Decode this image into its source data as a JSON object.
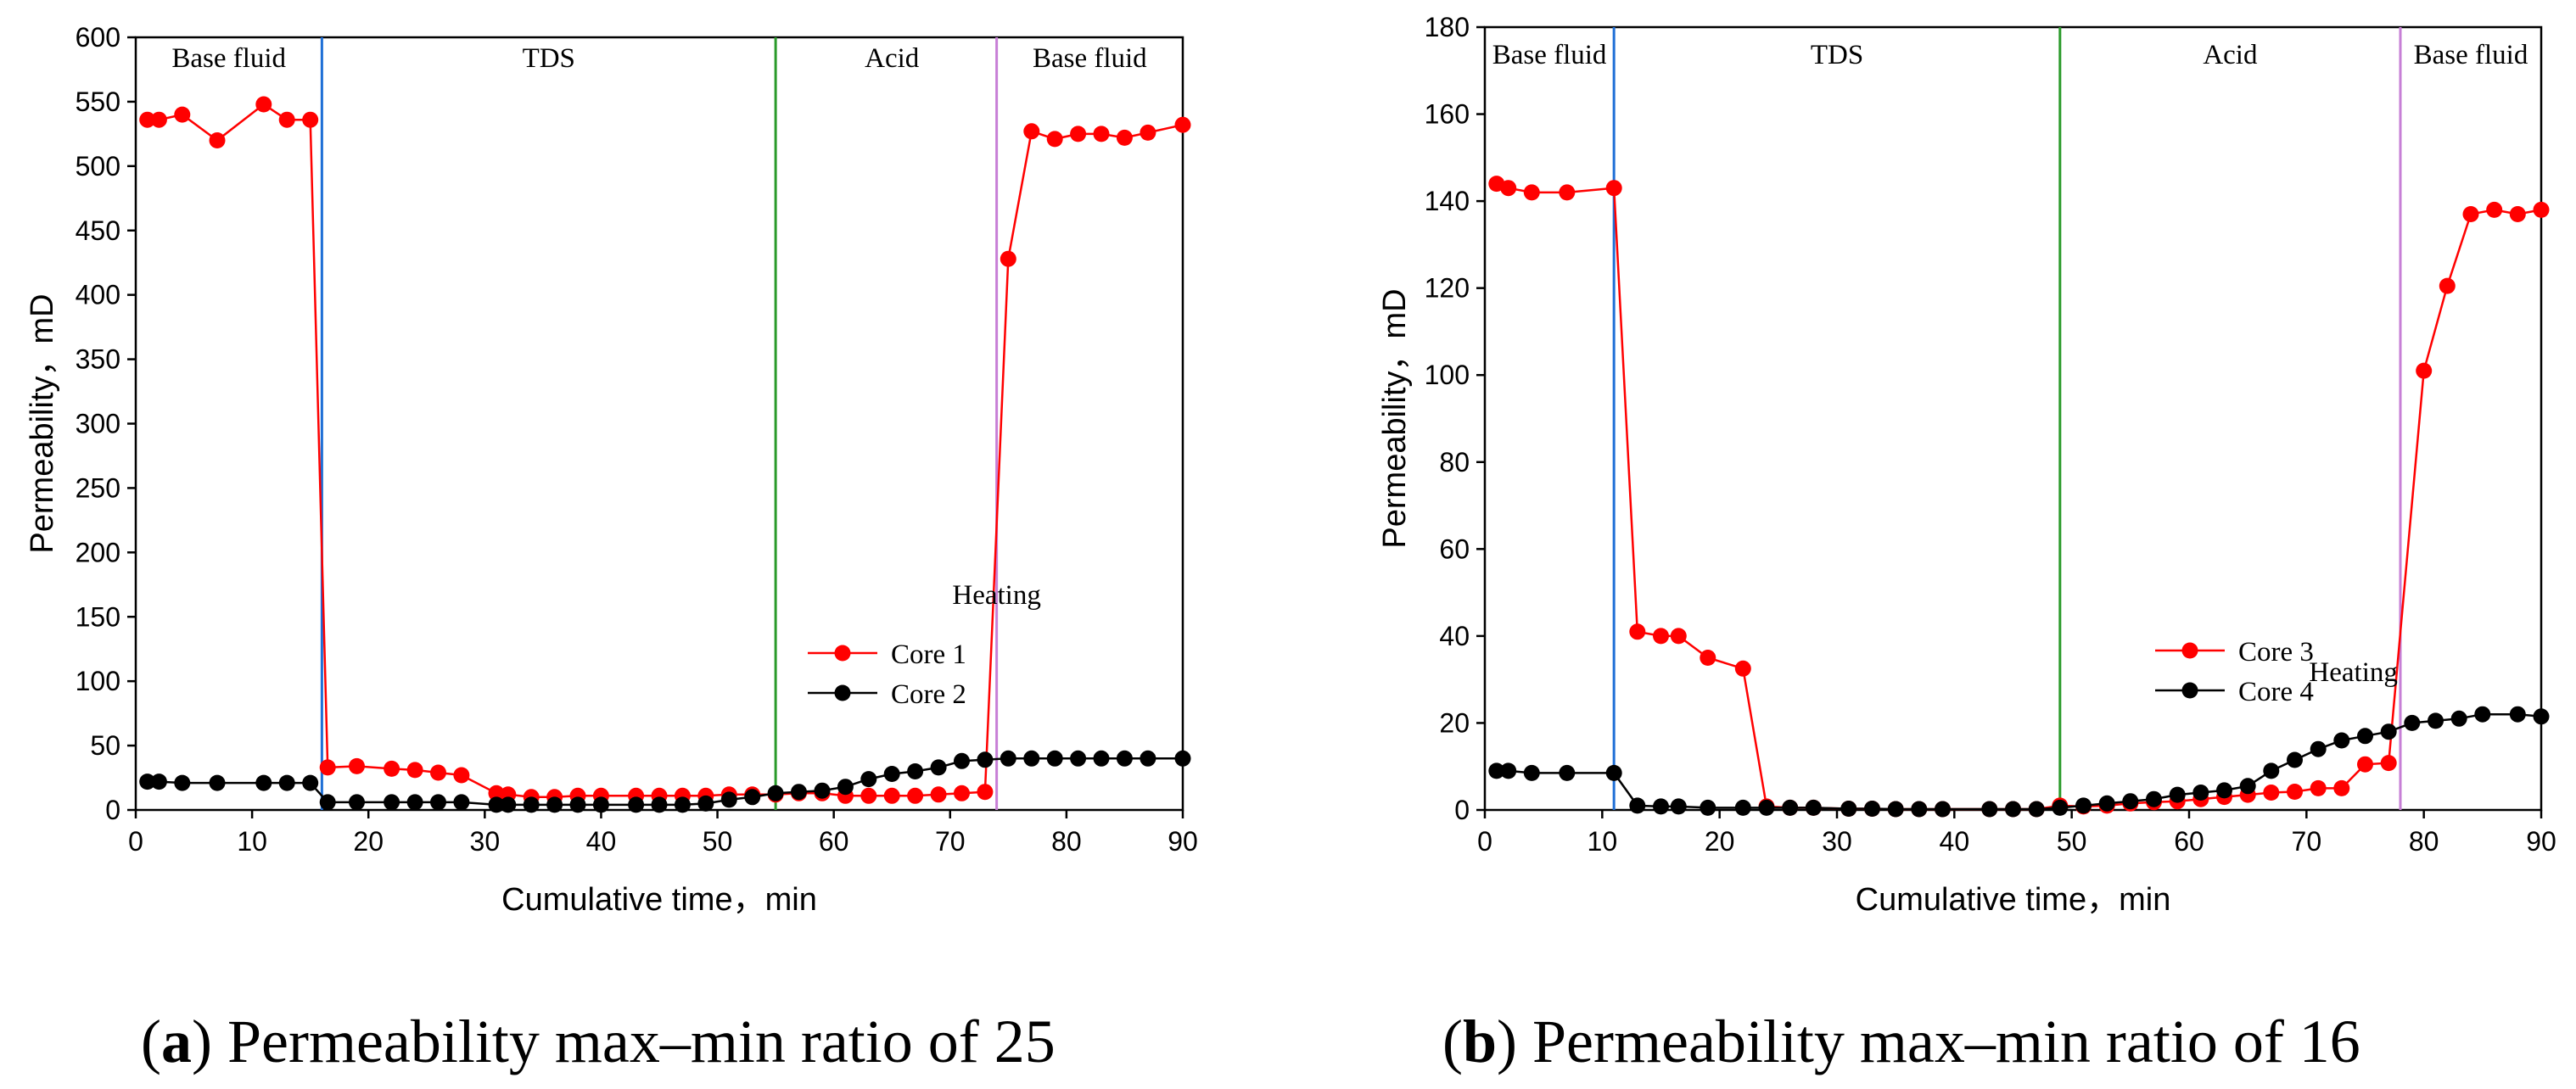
{
  "chart_data": [
    {
      "type": "line",
      "caption_letter": "a",
      "caption_text": ") Permeability max–min ratio of 25",
      "caption_open": "(",
      "xlabel": "Cumulative time，min",
      "ylabel": "Permeability，mD",
      "xlim": [
        0,
        90
      ],
      "ylim": [
        0,
        600
      ],
      "xticks": [
        0,
        10,
        20,
        30,
        40,
        50,
        60,
        70,
        80,
        90
      ],
      "yticks": [
        0,
        50,
        100,
        150,
        200,
        250,
        300,
        350,
        400,
        450,
        500,
        550,
        600
      ],
      "stage_lines": [
        {
          "x": 16,
          "color": "#1f6fd6"
        },
        {
          "x": 55,
          "color": "#2a9a2a"
        },
        {
          "x": 74,
          "color": "#c77fd6"
        }
      ],
      "regions": [
        {
          "label": "Base fluid",
          "x": 8,
          "y": 585
        },
        {
          "label": "TDS",
          "x": 35.5,
          "y": 585
        },
        {
          "label": "Acid",
          "x": 65,
          "y": 585
        },
        {
          "label": "Base fluid",
          "x": 82,
          "y": 585
        }
      ],
      "annotation": {
        "text": "Heating",
        "x": 74,
        "y": 168
      },
      "series": [
        {
          "name": "Core 1",
          "color": "#ff0000",
          "points": [
            [
              1,
              536
            ],
            [
              2,
              536
            ],
            [
              4,
              540
            ],
            [
              7,
              520
            ],
            [
              11,
              548
            ],
            [
              13,
              536
            ],
            [
              15,
              536
            ],
            [
              16.5,
              33
            ],
            [
              19,
              34
            ],
            [
              22,
              32
            ],
            [
              24,
              31
            ],
            [
              26,
              29
            ],
            [
              28,
              27
            ],
            [
              31,
              13
            ],
            [
              32,
              12
            ],
            [
              34,
              10
            ],
            [
              36,
              10
            ],
            [
              38,
              11
            ],
            [
              40,
              11
            ],
            [
              43,
              11
            ],
            [
              45,
              11
            ],
            [
              47,
              11
            ],
            [
              49,
              11
            ],
            [
              51,
              12
            ],
            [
              53,
              12
            ],
            [
              55,
              12
            ],
            [
              57,
              13
            ],
            [
              59,
              13
            ],
            [
              61,
              11
            ],
            [
              63,
              11
            ],
            [
              65,
              11
            ],
            [
              67,
              11
            ],
            [
              69,
              12
            ],
            [
              71,
              13
            ],
            [
              73,
              14
            ],
            [
              75,
              428
            ],
            [
              77,
              527
            ],
            [
              79,
              521
            ],
            [
              81,
              525
            ],
            [
              83,
              525
            ],
            [
              85,
              522
            ],
            [
              87,
              526
            ],
            [
              90,
              532
            ]
          ]
        },
        {
          "name": "Core 2",
          "color": "#000000",
          "points": [
            [
              1,
              22
            ],
            [
              2,
              22
            ],
            [
              4,
              21
            ],
            [
              7,
              21
            ],
            [
              11,
              21
            ],
            [
              13,
              21
            ],
            [
              15,
              21
            ],
            [
              16.5,
              6
            ],
            [
              19,
              6
            ],
            [
              22,
              6
            ],
            [
              24,
              6
            ],
            [
              26,
              6
            ],
            [
              28,
              6
            ],
            [
              31,
              4
            ],
            [
              32,
              4
            ],
            [
              34,
              4
            ],
            [
              36,
              4
            ],
            [
              38,
              4
            ],
            [
              40,
              4
            ],
            [
              43,
              4
            ],
            [
              45,
              4
            ],
            [
              47,
              4
            ],
            [
              49,
              5
            ],
            [
              51,
              8
            ],
            [
              53,
              10
            ],
            [
              55,
              13
            ],
            [
              57,
              14
            ],
            [
              59,
              15
            ],
            [
              61,
              18
            ],
            [
              63,
              24
            ],
            [
              65,
              28
            ],
            [
              67,
              30
            ],
            [
              69,
              33
            ],
            [
              71,
              38
            ],
            [
              73,
              39
            ],
            [
              75,
              40
            ],
            [
              77,
              40
            ],
            [
              79,
              40
            ],
            [
              81,
              40
            ],
            [
              83,
              40
            ],
            [
              85,
              40
            ],
            [
              87,
              40
            ],
            [
              90,
              40
            ]
          ]
        }
      ]
    },
    {
      "type": "line",
      "caption_letter": "b",
      "caption_text": ") Permeability max–min ratio of 16",
      "caption_open": "(",
      "xlabel": "Cumulative time，min",
      "ylabel": "Permeability，mD",
      "xlim": [
        0,
        90
      ],
      "ylim": [
        0,
        180
      ],
      "xticks": [
        0,
        10,
        20,
        30,
        40,
        50,
        60,
        70,
        80,
        90
      ],
      "yticks": [
        0,
        20,
        40,
        60,
        80,
        100,
        120,
        140,
        160,
        180
      ],
      "stage_lines": [
        {
          "x": 11,
          "color": "#1f6fd6"
        },
        {
          "x": 49,
          "color": "#2a9a2a"
        },
        {
          "x": 78,
          "color": "#c77fd6"
        }
      ],
      "regions": [
        {
          "label": "Base fluid",
          "x": 5.5,
          "y": 174
        },
        {
          "label": "TDS",
          "x": 30,
          "y": 174
        },
        {
          "label": "Acid",
          "x": 63.5,
          "y": 174
        },
        {
          "label": "Base fluid",
          "x": 84,
          "y": 174
        }
      ],
      "annotation": {
        "text": "Heating",
        "x": 74,
        "y": 32
      },
      "series": [
        {
          "name": "Core 3",
          "color": "#ff0000",
          "points": [
            [
              1,
              144
            ],
            [
              2,
              143
            ],
            [
              4,
              142
            ],
            [
              7,
              142
            ],
            [
              11,
              143
            ],
            [
              13,
              41
            ],
            [
              15,
              40
            ],
            [
              16.5,
              40
            ],
            [
              19,
              35
            ],
            [
              22,
              32.5
            ],
            [
              24,
              0.8
            ],
            [
              26,
              0.5
            ],
            [
              28,
              0.5
            ],
            [
              31,
              0.3
            ],
            [
              33,
              0.3
            ],
            [
              35,
              0.2
            ],
            [
              37,
              0.2
            ],
            [
              39,
              0.2
            ],
            [
              43,
              0.2
            ],
            [
              45,
              0.2
            ],
            [
              47,
              0.2
            ],
            [
              49,
              1
            ],
            [
              51,
              0.8
            ],
            [
              53,
              1
            ],
            [
              55,
              1.5
            ],
            [
              57,
              1.8
            ],
            [
              59,
              2
            ],
            [
              61,
              2.5
            ],
            [
              63,
              3
            ],
            [
              65,
              3.5
            ],
            [
              67,
              4
            ],
            [
              69,
              4.2
            ],
            [
              71,
              5
            ],
            [
              73,
              5
            ],
            [
              75,
              10.5
            ],
            [
              77,
              10.8
            ],
            [
              80,
              101
            ],
            [
              82,
              120.5
            ],
            [
              84,
              137
            ],
            [
              86,
              138
            ],
            [
              88,
              137
            ],
            [
              90,
              138
            ]
          ]
        },
        {
          "name": "Core 4",
          "color": "#000000",
          "points": [
            [
              1,
              9
            ],
            [
              2,
              9
            ],
            [
              4,
              8.5
            ],
            [
              7,
              8.5
            ],
            [
              11,
              8.5
            ],
            [
              13,
              1
            ],
            [
              15,
              0.8
            ],
            [
              16.5,
              0.8
            ],
            [
              19,
              0.5
            ],
            [
              22,
              0.5
            ],
            [
              24,
              0.5
            ],
            [
              26,
              0.5
            ],
            [
              28,
              0.5
            ],
            [
              31,
              0.3
            ],
            [
              33,
              0.3
            ],
            [
              35,
              0.2
            ],
            [
              37,
              0.2
            ],
            [
              39,
              0.2
            ],
            [
              43,
              0.2
            ],
            [
              45,
              0.2
            ],
            [
              47,
              0.2
            ],
            [
              49,
              0.5
            ],
            [
              51,
              1
            ],
            [
              53,
              1.5
            ],
            [
              55,
              2
            ],
            [
              57,
              2.5
            ],
            [
              59,
              3.5
            ],
            [
              61,
              4
            ],
            [
              63,
              4.5
            ],
            [
              65,
              5.5
            ],
            [
              67,
              9
            ],
            [
              69,
              11.5
            ],
            [
              71,
              14
            ],
            [
              73,
              16
            ],
            [
              75,
              17
            ],
            [
              77,
              18
            ],
            [
              79,
              20
            ],
            [
              81,
              20.5
            ],
            [
              83,
              21
            ],
            [
              85,
              22
            ],
            [
              88,
              22
            ],
            [
              90,
              21.5
            ]
          ]
        }
      ]
    }
  ]
}
